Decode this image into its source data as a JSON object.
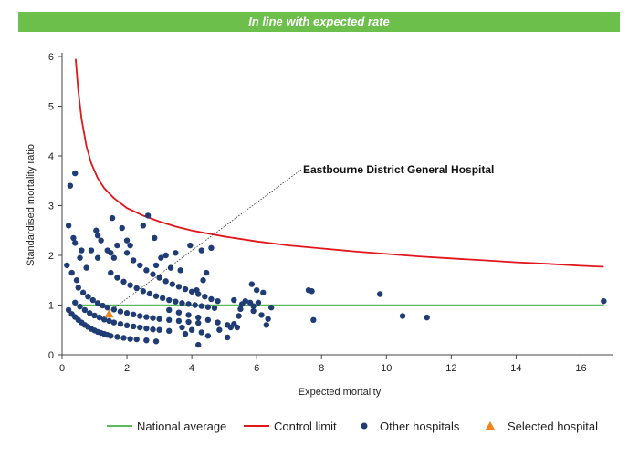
{
  "header": {
    "banner_text": "In line with expected rate"
  },
  "chart_data": {
    "type": "scatter",
    "xlabel": "Expected mortality",
    "ylabel": "Standardised mortality ratio",
    "xlim": [
      0,
      17
    ],
    "ylim": [
      0,
      6
    ],
    "x_ticks": [
      0,
      2,
      4,
      6,
      8,
      10,
      12,
      14,
      16
    ],
    "y_ticks": [
      0,
      1,
      2,
      3,
      4,
      5,
      6
    ],
    "grid": false,
    "legend_position": "bottom",
    "annotation": {
      "text": "Eastbourne District General Hospital",
      "points_to": [
        1.45,
        0.82
      ]
    },
    "colors": {
      "national": "#5cb85c",
      "control": "#e0161b",
      "other": "#1f3c74",
      "selected": "#f0831e"
    },
    "series": [
      {
        "name": "National average",
        "kind": "line",
        "x": [
          0.4,
          16.7
        ],
        "y": [
          1,
          1
        ]
      },
      {
        "name": "Control limit",
        "kind": "line",
        "x": [
          0.42,
          0.5,
          0.6,
          0.75,
          0.9,
          1.1,
          1.3,
          1.6,
          2,
          2.5,
          3,
          3.5,
          4,
          5,
          6,
          7,
          8,
          9,
          10,
          11,
          12,
          13,
          14,
          15,
          16,
          16.7
        ],
        "y": [
          5.95,
          5.3,
          4.75,
          4.2,
          3.85,
          3.55,
          3.35,
          3.15,
          2.95,
          2.8,
          2.68,
          2.58,
          2.5,
          2.38,
          2.28,
          2.2,
          2.14,
          2.08,
          2.03,
          1.98,
          1.94,
          1.9,
          1.86,
          1.83,
          1.79,
          1.77
        ]
      },
      {
        "name": "Other hospitals",
        "kind": "scatter",
        "points": [
          [
            0.15,
            1.8
          ],
          [
            0.2,
            2.6
          ],
          [
            0.25,
            3.4
          ],
          [
            0.4,
            3.65
          ],
          [
            0.35,
            2.35
          ],
          [
            0.4,
            2.25
          ],
          [
            0.3,
            1.65
          ],
          [
            0.45,
            1.5
          ],
          [
            0.55,
            1.95
          ],
          [
            0.6,
            2.1
          ],
          [
            0.75,
            1.75
          ],
          [
            0.9,
            2.1
          ],
          [
            1.05,
            2.5
          ],
          [
            1.1,
            2.4
          ],
          [
            1.2,
            2.3
          ],
          [
            1.1,
            1.95
          ],
          [
            1.4,
            2.1
          ],
          [
            1.5,
            2.05
          ],
          [
            1.55,
            2.75
          ],
          [
            1.6,
            1.95
          ],
          [
            1.7,
            2.2
          ],
          [
            1.85,
            2.55
          ],
          [
            2.0,
            2.3
          ],
          [
            2.0,
            2.05
          ],
          [
            2.1,
            2.2
          ],
          [
            2.5,
            2.6
          ],
          [
            2.65,
            2.8
          ],
          [
            2.85,
            2.35
          ],
          [
            2.9,
            1.8
          ],
          [
            3.05,
            1.95
          ],
          [
            3.2,
            2.0
          ],
          [
            3.35,
            1.75
          ],
          [
            3.5,
            2.05
          ],
          [
            3.65,
            1.7
          ],
          [
            3.95,
            2.2
          ],
          [
            4.3,
            2.1
          ],
          [
            4.6,
            2.15
          ],
          [
            4.45,
            1.65
          ],
          [
            4.35,
            1.5
          ],
          [
            4.15,
            1.3
          ],
          [
            0.2,
            0.9
          ],
          [
            0.3,
            0.82
          ],
          [
            0.4,
            0.76
          ],
          [
            0.5,
            0.7
          ],
          [
            0.6,
            0.65
          ],
          [
            0.7,
            0.6
          ],
          [
            0.8,
            0.56
          ],
          [
            0.9,
            0.52
          ],
          [
            1.0,
            0.49
          ],
          [
            1.1,
            0.46
          ],
          [
            1.2,
            0.44
          ],
          [
            1.3,
            0.42
          ],
          [
            1.4,
            0.4
          ],
          [
            1.5,
            0.38
          ],
          [
            1.7,
            0.36
          ],
          [
            1.9,
            0.34
          ],
          [
            2.1,
            0.32
          ],
          [
            2.3,
            0.31
          ],
          [
            2.6,
            0.29
          ],
          [
            2.9,
            0.27
          ],
          [
            0.4,
            1.05
          ],
          [
            0.55,
            0.97
          ],
          [
            0.7,
            0.9
          ],
          [
            0.85,
            0.84
          ],
          [
            1.0,
            0.79
          ],
          [
            1.15,
            0.75
          ],
          [
            1.3,
            0.71
          ],
          [
            1.45,
            0.68
          ],
          [
            1.6,
            0.65
          ],
          [
            1.8,
            0.62
          ],
          [
            2.0,
            0.59
          ],
          [
            2.2,
            0.57
          ],
          [
            2.4,
            0.55
          ],
          [
            2.6,
            0.53
          ],
          [
            2.8,
            0.51
          ],
          [
            3.0,
            0.5
          ],
          [
            3.3,
            0.48
          ],
          [
            0.5,
            1.35
          ],
          [
            0.65,
            1.25
          ],
          [
            0.8,
            1.17
          ],
          [
            0.95,
            1.1
          ],
          [
            1.1,
            1.04
          ],
          [
            1.25,
            0.99
          ],
          [
            1.4,
            0.95
          ],
          [
            1.6,
            0.91
          ],
          [
            1.8,
            0.87
          ],
          [
            2.0,
            0.84
          ],
          [
            2.2,
            0.81
          ],
          [
            2.4,
            0.78
          ],
          [
            2.6,
            0.76
          ],
          [
            2.8,
            0.74
          ],
          [
            3.0,
            0.72
          ],
          [
            3.3,
            0.7
          ],
          [
            3.6,
            0.68
          ],
          [
            3.9,
            0.66
          ],
          [
            4.2,
            0.64
          ],
          [
            1.5,
            1.65
          ],
          [
            1.7,
            1.55
          ],
          [
            1.9,
            1.47
          ],
          [
            2.1,
            1.4
          ],
          [
            2.3,
            1.34
          ],
          [
            2.5,
            1.28
          ],
          [
            2.7,
            1.23
          ],
          [
            2.9,
            1.18
          ],
          [
            3.1,
            1.14
          ],
          [
            3.3,
            1.1
          ],
          [
            3.5,
            1.07
          ],
          [
            3.7,
            1.04
          ],
          [
            3.9,
            1.02
          ],
          [
            4.1,
            1.0
          ],
          [
            4.3,
            0.98
          ],
          [
            4.5,
            0.96
          ],
          [
            4.7,
            0.94
          ],
          [
            2.2,
            1.9
          ],
          [
            2.4,
            1.8
          ],
          [
            2.6,
            1.7
          ],
          [
            2.8,
            1.62
          ],
          [
            3.0,
            1.55
          ],
          [
            3.2,
            1.48
          ],
          [
            3.4,
            1.42
          ],
          [
            3.6,
            1.37
          ],
          [
            3.8,
            1.32
          ],
          [
            4.0,
            1.27
          ],
          [
            4.2,
            1.22
          ],
          [
            4.4,
            1.17
          ],
          [
            4.6,
            1.12
          ],
          [
            4.8,
            1.08
          ],
          [
            3.3,
            0.9
          ],
          [
            3.6,
            0.85
          ],
          [
            3.9,
            0.8
          ],
          [
            4.2,
            0.75
          ],
          [
            4.5,
            0.7
          ],
          [
            4.8,
            0.65
          ],
          [
            5.1,
            0.6
          ],
          [
            5.4,
            0.55
          ],
          [
            3.7,
            0.55
          ],
          [
            4.0,
            0.5
          ],
          [
            4.3,
            0.45
          ],
          [
            4.5,
            0.38
          ],
          [
            3.8,
            0.42
          ],
          [
            4.2,
            0.2
          ],
          [
            5.2,
            0.55
          ],
          [
            5.3,
            0.62
          ],
          [
            5.45,
            0.78
          ],
          [
            5.5,
            0.92
          ],
          [
            5.55,
            1.02
          ],
          [
            5.65,
            1.08
          ],
          [
            5.8,
            1.05
          ],
          [
            5.9,
            0.88
          ],
          [
            5.9,
            0.98
          ],
          [
            6.05,
            1.05
          ],
          [
            6.15,
            0.8
          ],
          [
            6.3,
            0.6
          ],
          [
            6.35,
            0.72
          ],
          [
            6.45,
            0.95
          ],
          [
            5.85,
            1.42
          ],
          [
            6.0,
            1.3
          ],
          [
            6.2,
            1.25
          ],
          [
            5.3,
            1.1
          ],
          [
            5.1,
            0.35
          ],
          [
            4.85,
            0.5
          ],
          [
            7.6,
            1.3
          ],
          [
            7.7,
            1.28
          ],
          [
            7.75,
            0.7
          ],
          [
            9.8,
            1.22
          ],
          [
            10.5,
            0.78
          ],
          [
            11.25,
            0.75
          ],
          [
            16.7,
            1.08
          ]
        ]
      },
      {
        "name": "Selected hospital",
        "kind": "scatter",
        "points": [
          [
            1.45,
            0.82
          ]
        ]
      }
    ]
  }
}
